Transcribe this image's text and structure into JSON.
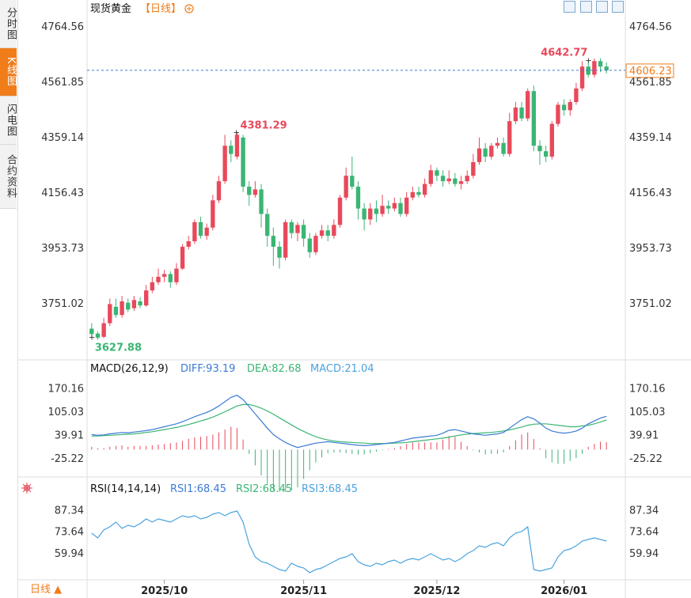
{
  "sidebar": {
    "tabs": [
      {
        "label": "分时图",
        "active": false
      },
      {
        "label": "K线图",
        "active": true
      },
      {
        "label": "闪电图",
        "active": false
      },
      {
        "label": "合约资料",
        "active": false
      }
    ]
  },
  "header": {
    "title": "现货黄金",
    "period_label": "【日线】",
    "zoom_icon": "zoom-in-icon",
    "toolbar_icons": [
      "crosshair-icon",
      "chart-type-icon",
      "play-icon",
      "fullscreen-icon"
    ]
  },
  "price_panel": {
    "left_ticks": [
      "4764.56",
      "4561.85",
      "4359.14",
      "4156.43",
      "3953.73",
      "3751.02"
    ],
    "right_ticks": [
      "4764.56",
      "4561.85",
      "4359.14",
      "4156.43",
      "3953.73",
      "3751.02"
    ],
    "current_price": "4606.23",
    "high_label": "4642.77",
    "peak_label": "4381.29",
    "low_label": "3627.88"
  },
  "macd_panel": {
    "label": "MACD(26,12,9)",
    "diff": "DIFF:93.19",
    "dea": "DEA:82.68",
    "macd": "MACD:21.04",
    "ticks": [
      "170.16",
      "105.03",
      "39.91",
      "-25.22"
    ]
  },
  "rsi_panel": {
    "label": "RSI(14,14,14)",
    "rsi1": "RSI1:68.45",
    "rsi2": "RSI2:68.45",
    "rsi3": "RSI3:68.45",
    "ticks": [
      "87.34",
      "73.64",
      "59.94"
    ]
  },
  "x_axis": [
    "2025/10",
    "2025/11",
    "2025/12",
    "2026/01"
  ],
  "footer": {
    "period_button": "日线 ▲"
  },
  "colors": {
    "up": "#e8495b",
    "down": "#3bb574",
    "accent": "#f07c1a",
    "diff": "#3a7bd5",
    "dea": "#3bb574",
    "rsi": "#4aa3df"
  },
  "chart_data": [
    {
      "type": "candlestick",
      "title": "现货黄金",
      "ylim": [
        3560,
        4800
      ],
      "columns": [
        "open",
        "close",
        "high",
        "low"
      ],
      "candles": [
        [
          3660,
          3640,
          3680,
          3625
        ],
        [
          3642,
          3627,
          3650,
          3620
        ],
        [
          3630,
          3680,
          3700,
          3625
        ],
        [
          3680,
          3750,
          3770,
          3670
        ],
        [
          3740,
          3710,
          3770,
          3700
        ],
        [
          3710,
          3760,
          3780,
          3700
        ],
        [
          3755,
          3730,
          3770,
          3720
        ],
        [
          3735,
          3765,
          3780,
          3725
        ],
        [
          3760,
          3745,
          3775,
          3735
        ],
        [
          3745,
          3800,
          3820,
          3740
        ],
        [
          3800,
          3830,
          3850,
          3790
        ],
        [
          3830,
          3850,
          3880,
          3820
        ],
        [
          3850,
          3860,
          3875,
          3830
        ],
        [
          3860,
          3830,
          3870,
          3810
        ],
        [
          3830,
          3880,
          3900,
          3820
        ],
        [
          3880,
          3960,
          3970,
          3875
        ],
        [
          3960,
          3980,
          4000,
          3950
        ],
        [
          3980,
          4050,
          4060,
          3970
        ],
        [
          4050,
          4000,
          4070,
          3990
        ],
        [
          4000,
          4030,
          4045,
          3985
        ],
        [
          4030,
          4130,
          4150,
          4020
        ],
        [
          4130,
          4200,
          4220,
          4120
        ],
        [
          4200,
          4330,
          4370,
          4190
        ],
        [
          4330,
          4300,
          4350,
          4270
        ],
        [
          4290,
          4370,
          4381,
          4280
        ],
        [
          4360,
          4180,
          4370,
          4160
        ],
        [
          4180,
          4150,
          4200,
          4110
        ],
        [
          4150,
          4170,
          4200,
          4140
        ],
        [
          4170,
          4080,
          4190,
          4030
        ],
        [
          4080,
          4000,
          4100,
          3960
        ],
        [
          4000,
          3960,
          4030,
          3890
        ],
        [
          3960,
          3920,
          3980,
          3880
        ],
        [
          3920,
          4050,
          4060,
          3910
        ],
        [
          4050,
          4010,
          4060,
          3990
        ],
        [
          4010,
          4040,
          4050,
          3980
        ],
        [
          4040,
          3990,
          4060,
          3960
        ],
        [
          3990,
          3940,
          4010,
          3920
        ],
        [
          3940,
          4000,
          4010,
          3930
        ],
        [
          4000,
          4020,
          4040,
          3990
        ],
        [
          4020,
          4000,
          4040,
          3980
        ],
        [
          4000,
          4040,
          4060,
          3990
        ],
        [
          4040,
          4140,
          4150,
          4030
        ],
        [
          4140,
          4220,
          4250,
          4130
        ],
        [
          4220,
          4180,
          4290,
          4170
        ],
        [
          4180,
          4100,
          4200,
          4060
        ],
        [
          4100,
          4060,
          4120,
          4020
        ],
        [
          4060,
          4100,
          4120,
          4040
        ],
        [
          4100,
          4080,
          4130,
          4050
        ],
        [
          4080,
          4110,
          4150,
          4070
        ],
        [
          4110,
          4100,
          4130,
          4080
        ],
        [
          4100,
          4120,
          4140,
          4090
        ],
        [
          4120,
          4080,
          4140,
          4070
        ],
        [
          4080,
          4140,
          4160,
          4070
        ],
        [
          4140,
          4160,
          4180,
          4130
        ],
        [
          4160,
          4150,
          4180,
          4140
        ],
        [
          4150,
          4190,
          4210,
          4140
        ],
        [
          4190,
          4240,
          4260,
          4180
        ],
        [
          4240,
          4220,
          4250,
          4200
        ],
        [
          4220,
          4200,
          4240,
          4180
        ],
        [
          4200,
          4210,
          4240,
          4190
        ],
        [
          4210,
          4190,
          4230,
          4180
        ],
        [
          4190,
          4200,
          4220,
          4170
        ],
        [
          4200,
          4220,
          4240,
          4190
        ],
        [
          4220,
          4270,
          4300,
          4210
        ],
        [
          4270,
          4320,
          4360,
          4260
        ],
        [
          4320,
          4290,
          4340,
          4270
        ],
        [
          4290,
          4330,
          4340,
          4280
        ],
        [
          4330,
          4340,
          4360,
          4320
        ],
        [
          4340,
          4300,
          4360,
          4290
        ],
        [
          4300,
          4420,
          4450,
          4290
        ],
        [
          4420,
          4470,
          4490,
          4410
        ],
        [
          4470,
          4430,
          4490,
          4420
        ],
        [
          4430,
          4530,
          4540,
          4420
        ],
        [
          4530,
          4330,
          4550,
          4310
        ],
        [
          4330,
          4310,
          4350,
          4260
        ],
        [
          4310,
          4290,
          4330,
          4270
        ],
        [
          4290,
          4410,
          4420,
          4280
        ],
        [
          4410,
          4480,
          4490,
          4400
        ],
        [
          4480,
          4460,
          4500,
          4440
        ],
        [
          4460,
          4490,
          4500,
          4440
        ],
        [
          4490,
          4540,
          4560,
          4480
        ],
        [
          4540,
          4620,
          4640,
          4530
        ],
        [
          4620,
          4590,
          4643,
          4580
        ],
        [
          4590,
          4640,
          4650,
          4580
        ],
        [
          4640,
          4620,
          4650,
          4600
        ],
        [
          4620,
          4606,
          4635,
          4595
        ]
      ]
    },
    {
      "type": "macd",
      "ylim": [
        -70,
        200
      ],
      "diff": [
        42,
        40,
        41,
        44,
        46,
        48,
        47,
        49,
        51,
        53,
        56,
        60,
        64,
        68,
        72,
        78,
        85,
        92,
        98,
        104,
        112,
        122,
        134,
        146,
        152,
        140,
        120,
        100,
        80,
        60,
        42,
        30,
        20,
        12,
        6,
        10,
        14,
        18,
        20,
        22,
        20,
        18,
        16,
        14,
        12,
        11,
        12,
        14,
        16,
        18,
        20,
        24,
        28,
        32,
        34,
        36,
        38,
        40,
        46,
        54,
        56,
        52,
        48,
        44,
        42,
        40,
        42,
        44,
        48,
        60,
        72,
        84,
        92,
        86,
        74,
        60,
        52,
        48,
        46,
        48,
        52,
        60,
        72,
        80,
        88,
        93
      ],
      "dea": [
        38,
        38,
        39,
        40,
        41,
        42,
        43,
        44,
        46,
        48,
        50,
        53,
        56,
        59,
        62,
        66,
        70,
        75,
        80,
        85,
        91,
        98,
        106,
        114,
        122,
        126,
        126,
        122,
        116,
        108,
        99,
        89,
        79,
        69,
        59,
        51,
        43,
        36,
        31,
        27,
        24,
        22,
        21,
        20,
        19,
        18,
        17,
        17,
        17,
        17,
        18,
        19,
        20,
        22,
        24,
        26,
        28,
        30,
        32,
        35,
        38,
        41,
        43,
        45,
        46,
        47,
        48,
        50,
        52,
        55,
        59,
        63,
        68,
        71,
        72,
        72,
        70,
        68,
        66,
        64,
        64,
        66,
        68,
        72,
        77,
        83
      ],
      "hist": [
        8,
        4,
        4,
        8,
        10,
        12,
        8,
        10,
        10,
        10,
        12,
        14,
        16,
        18,
        20,
        24,
        30,
        34,
        36,
        38,
        42,
        48,
        56,
        64,
        60,
        28,
        -12,
        -44,
        -72,
        -96,
        -114,
        -118,
        -118,
        -114,
        -106,
        -82,
        -58,
        -36,
        -22,
        -10,
        -8,
        -8,
        -10,
        -12,
        -14,
        -14,
        -10,
        -6,
        -2,
        2,
        4,
        10,
        16,
        20,
        20,
        20,
        20,
        20,
        28,
        38,
        36,
        22,
        10,
        -2,
        -8,
        -14,
        -12,
        -12,
        -8,
        10,
        26,
        42,
        48,
        30,
        4,
        -24,
        -36,
        -40,
        -40,
        -32,
        -24,
        -12,
        8,
        16,
        22,
        21
      ]
    },
    {
      "type": "line",
      "name": "RSI",
      "ylim": [
        45,
        95
      ],
      "values": [
        73,
        70,
        75,
        77,
        80,
        76,
        78,
        77,
        79,
        82,
        80,
        82,
        81,
        80,
        82,
        84,
        83,
        84,
        82,
        83,
        85,
        86,
        84,
        86,
        87,
        80,
        66,
        58,
        55,
        54,
        52,
        50,
        49,
        54,
        52,
        51,
        48,
        50,
        51,
        53,
        55,
        57,
        58,
        60,
        55,
        53,
        52,
        54,
        53,
        55,
        56,
        54,
        56,
        57,
        56,
        58,
        60,
        58,
        56,
        57,
        55,
        57,
        60,
        62,
        65,
        64,
        66,
        67,
        65,
        70,
        73,
        74,
        77,
        50,
        49,
        50,
        51,
        58,
        62,
        63,
        65,
        68,
        69,
        70,
        69,
        68
      ]
    }
  ]
}
